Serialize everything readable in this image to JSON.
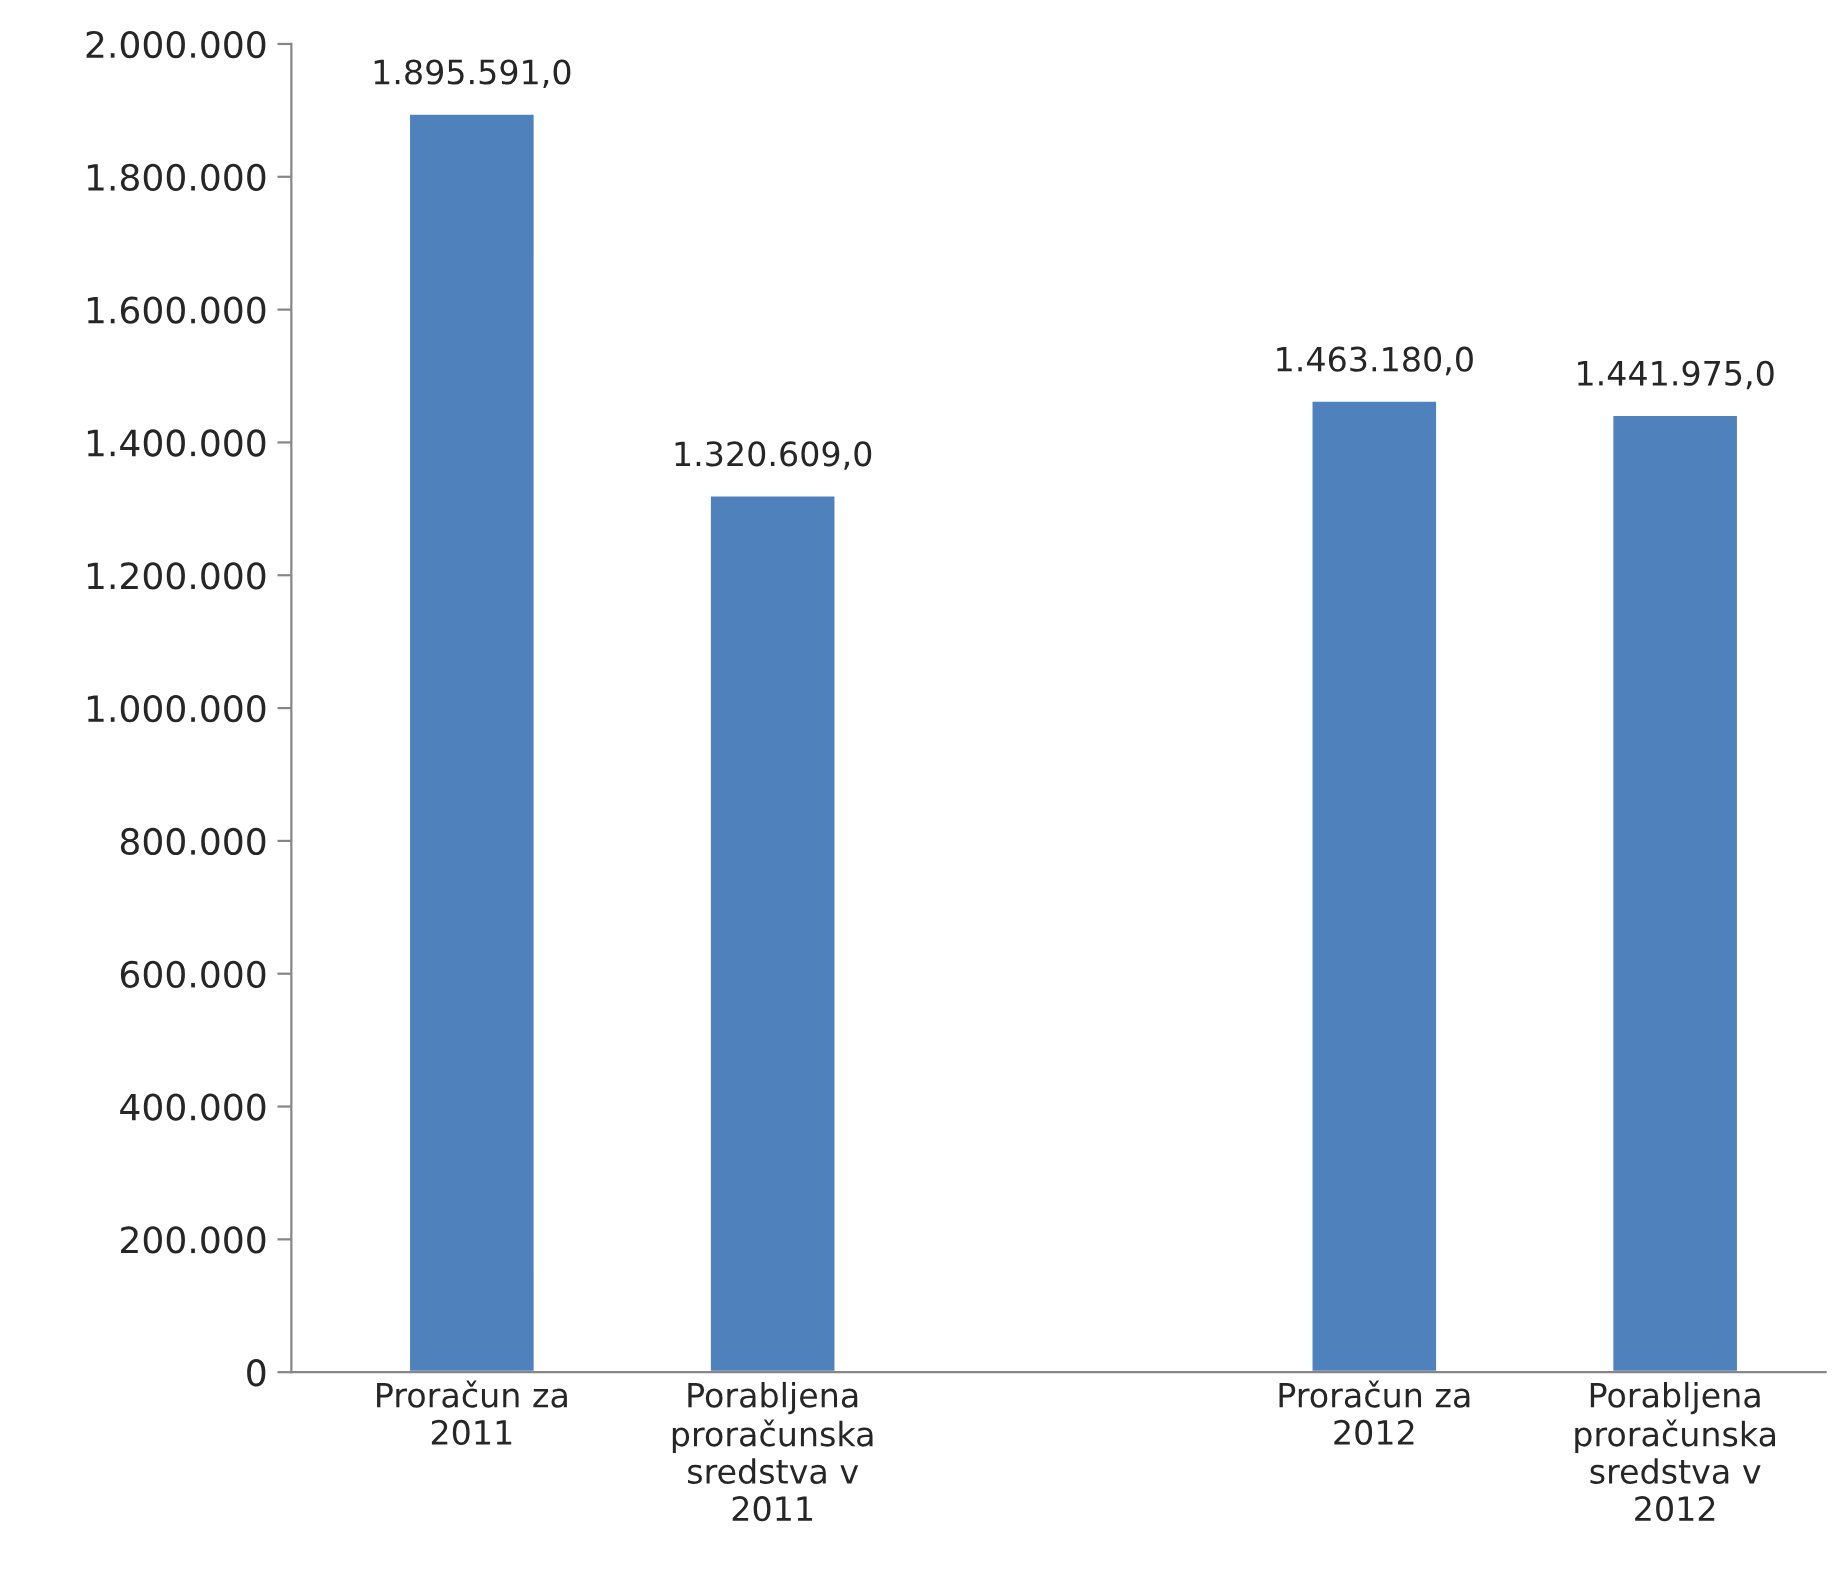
{
  "chart_data": {
    "type": "bar",
    "categories": [
      "Proračun za 2011",
      "Porabljena proračunska sredstva v 2011",
      null,
      "Proračun za 2012",
      "Porabljena proračunska sredstva v 2012"
    ],
    "values": [
      1895591.0,
      1320609.0,
      null,
      1463180.0,
      1441975.0
    ],
    "value_labels": [
      "1.895.591,0",
      "1.320.609,0",
      null,
      "1.463.180,0",
      "1.441.975,0"
    ],
    "color": "#4f81bd",
    "ylim": [
      0,
      2000000
    ],
    "yticks": [
      {
        "value": 0,
        "label": "0"
      },
      {
        "value": 200000,
        "label": "200.000"
      },
      {
        "value": 400000,
        "label": "400.000"
      },
      {
        "value": 600000,
        "label": "600.000"
      },
      {
        "value": 800000,
        "label": "800.000"
      },
      {
        "value": 1000000,
        "label": "1.000.000"
      },
      {
        "value": 1200000,
        "label": "1.200.000"
      },
      {
        "value": 1400000,
        "label": "1.400.000"
      },
      {
        "value": 1600000,
        "label": "1.600.000"
      },
      {
        "value": 1800000,
        "label": "1.800.000"
      },
      {
        "value": 2000000,
        "label": "2.000.000"
      }
    ],
    "grid": false,
    "legend": false
  }
}
